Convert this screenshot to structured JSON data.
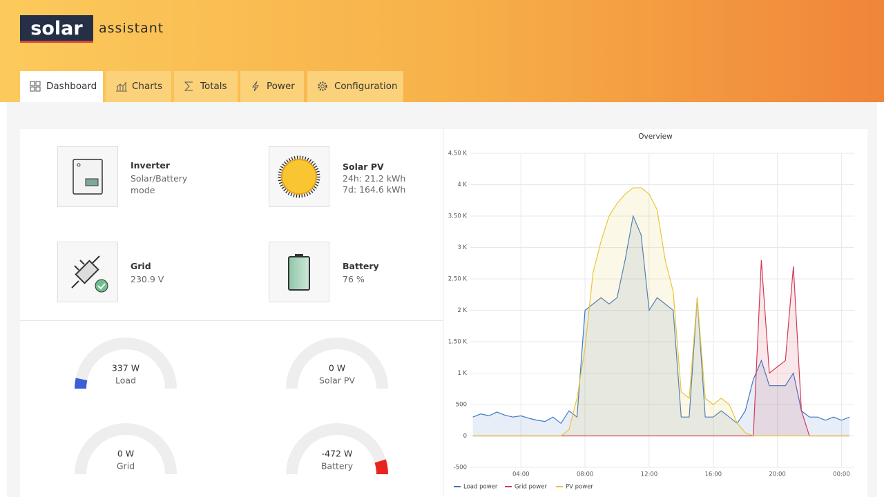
{
  "header": {
    "logo_word": "solar",
    "logo_suffix": "assistant"
  },
  "tabs": [
    "Dashboard",
    "Charts",
    "Totals",
    "Power",
    "Configuration"
  ],
  "cards": [
    {
      "title": "Inverter",
      "lines": [
        "Solar/Battery mode"
      ]
    },
    {
      "title": "Solar PV",
      "lines": [
        "24h: 21.2 kWh",
        "7d: 164.6 kWh"
      ]
    },
    {
      "title": "Grid",
      "lines": [
        "230.9 V"
      ]
    },
    {
      "title": "Battery",
      "lines": [
        "76 %"
      ]
    }
  ],
  "gauges": [
    {
      "label": "Load",
      "value": 337,
      "value_label": "337 W",
      "color": "#3c5fd6"
    },
    {
      "label": "Solar PV",
      "value": 0,
      "value_label": "0 W",
      "color": "#f2b83b"
    },
    {
      "label": "Grid",
      "value": 0,
      "value_label": "0 W",
      "color": "#d13b55"
    },
    {
      "label": "Battery",
      "value": -472,
      "value_label": "-472 W",
      "color": "#e8241f"
    }
  ],
  "chart_data": {
    "type": "line",
    "title": "Overview",
    "x": [
      1,
      1.5,
      2,
      2.5,
      3,
      3.5,
      4,
      4.5,
      5,
      5.5,
      6,
      6.5,
      7,
      7.5,
      8,
      8.5,
      9,
      9.5,
      10,
      10.5,
      11,
      11.5,
      12,
      12.5,
      13,
      13.5,
      14,
      14.5,
      15,
      15.5,
      16,
      16.5,
      17,
      17.5,
      18,
      18.5,
      19,
      19.5,
      20,
      20.5,
      21,
      21.5,
      22,
      22.5,
      23,
      23.5,
      24,
      24.5
    ],
    "series": [
      {
        "name": "Load power",
        "color": "#3f77c4",
        "values": [
          300,
          350,
          320,
          380,
          330,
          300,
          320,
          280,
          250,
          230,
          300,
          200,
          400,
          300,
          2000,
          2100,
          2200,
          2100,
          2200,
          2800,
          3500,
          3200,
          2000,
          2200,
          2100,
          2000,
          300,
          300,
          2200,
          300,
          300,
          400,
          300,
          200,
          400,
          900,
          1200,
          800,
          800,
          800,
          1000,
          400,
          300,
          300,
          250,
          300,
          250,
          300
        ]
      },
      {
        "name": "Grid power",
        "color": "#d13b55",
        "values": [
          0,
          0,
          0,
          0,
          0,
          0,
          0,
          0,
          0,
          0,
          0,
          0,
          0,
          0,
          0,
          0,
          0,
          0,
          0,
          0,
          0,
          0,
          0,
          0,
          0,
          0,
          0,
          0,
          0,
          0,
          0,
          0,
          0,
          0,
          0,
          0,
          2800,
          1000,
          1100,
          1200,
          2700,
          400,
          0,
          0,
          0,
          0,
          0,
          0
        ]
      },
      {
        "name": "PV power",
        "color": "#e8c53a",
        "values": [
          0,
          0,
          0,
          0,
          0,
          0,
          0,
          0,
          0,
          0,
          0,
          0,
          100,
          600,
          1400,
          2600,
          3100,
          3500,
          3700,
          3850,
          3950,
          3950,
          3850,
          3600,
          2800,
          2300,
          700,
          600,
          2200,
          600,
          500,
          600,
          500,
          200,
          50,
          0,
          0,
          0,
          0,
          0,
          0,
          0,
          0,
          0,
          0,
          0,
          0,
          0
        ]
      }
    ],
    "xlim": [
      0.8,
      24.8
    ],
    "xticks": [
      {
        "value": 4,
        "label": "04:00"
      },
      {
        "value": 8,
        "label": "08:00"
      },
      {
        "value": 12,
        "label": "12:00"
      },
      {
        "value": 16,
        "label": "16:00"
      },
      {
        "value": 20,
        "label": "20:00"
      },
      {
        "value": 24,
        "label": "00:00"
      }
    ],
    "ylim": [
      -500,
      4500
    ],
    "yticks": [
      -500,
      0,
      500,
      {
        "value": 1000,
        "label": "1 K"
      },
      {
        "value": 1500,
        "label": "1.50 K"
      },
      {
        "value": 2000,
        "label": "2 K"
      },
      {
        "value": 2500,
        "label": "2.50 K"
      },
      {
        "value": 3000,
        "label": "3 K"
      },
      {
        "value": 3500,
        "label": "3.50 K"
      },
      {
        "value": 4000,
        "label": "4 K"
      },
      {
        "value": 4500,
        "label": "4.50 K"
      }
    ],
    "grid": true
  }
}
